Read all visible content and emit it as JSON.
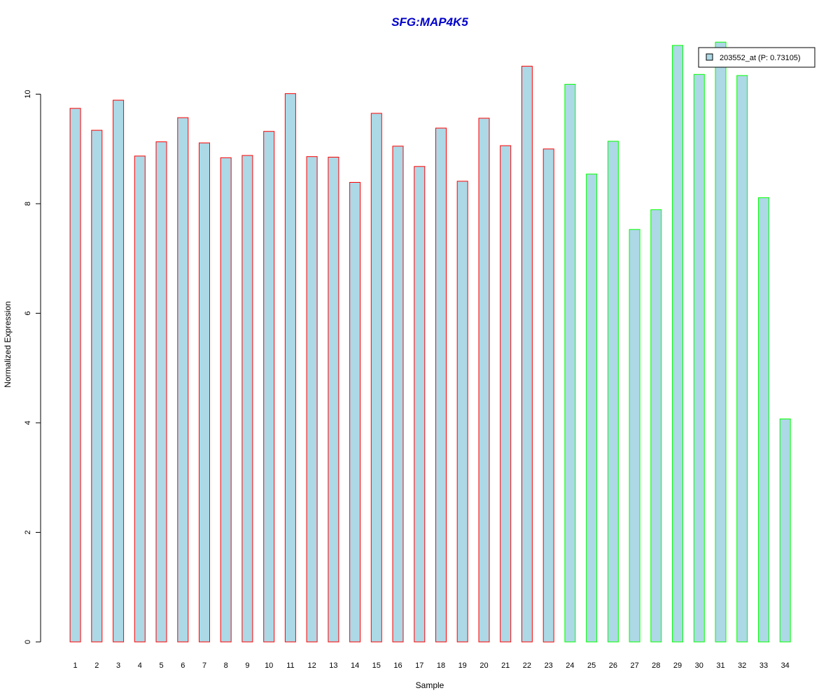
{
  "chart_data": {
    "type": "bar",
    "title": "SFG:MAP4K5",
    "xlabel": "Sample",
    "ylabel": "Normalized Expression",
    "ylim": [
      0,
      11
    ],
    "yticks": [
      0,
      2,
      4,
      6,
      8,
      10
    ],
    "grid": false,
    "legend_position": "top-right",
    "categories": [
      "1",
      "2",
      "3",
      "4",
      "5",
      "6",
      "7",
      "8",
      "9",
      "10",
      "11",
      "12",
      "13",
      "14",
      "15",
      "16",
      "17",
      "18",
      "19",
      "20",
      "21",
      "22",
      "23",
      "24",
      "25",
      "26",
      "27",
      "28",
      "29",
      "30",
      "31",
      "32",
      "33",
      "34"
    ],
    "series": [
      {
        "name": "203552_at (P: 0.73105)",
        "values": [
          9.74,
          9.34,
          9.89,
          8.87,
          9.13,
          9.57,
          9.11,
          8.84,
          8.88,
          9.32,
          10.01,
          8.86,
          8.85,
          8.39,
          9.65,
          9.05,
          8.68,
          9.38,
          8.41,
          9.56,
          9.06,
          10.51,
          9.0,
          10.18,
          8.54,
          9.14,
          7.53,
          7.89,
          10.89,
          10.36,
          10.95,
          10.34,
          8.11,
          4.07
        ]
      }
    ],
    "groups": [
      {
        "from": 1,
        "to": 23,
        "border_color": "#ff0000"
      },
      {
        "from": 24,
        "to": 34,
        "border_color": "#00ff00"
      }
    ],
    "colors": {
      "bar_fill": "#add8e6",
      "title": "#0000cc",
      "axis": "#000000"
    }
  }
}
